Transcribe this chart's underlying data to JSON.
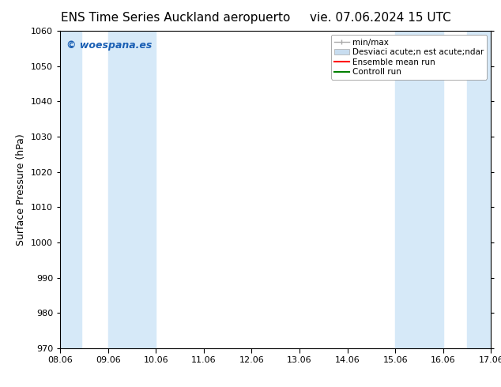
{
  "title_left": "ENS Time Series Auckland aeropuerto",
  "title_right": "vie. 07.06.2024 15 UTC",
  "ylabel": "Surface Pressure (hPa)",
  "ylim": [
    970,
    1060
  ],
  "yticks": [
    970,
    980,
    990,
    1000,
    1010,
    1020,
    1030,
    1040,
    1050,
    1060
  ],
  "xlabel_dates": [
    "08.06",
    "09.06",
    "10.06",
    "11.06",
    "12.06",
    "13.06",
    "14.06",
    "15.06",
    "16.06",
    "17.06"
  ],
  "x_positions": [
    0,
    1,
    2,
    3,
    4,
    5,
    6,
    7,
    8,
    9
  ],
  "xlim": [
    0,
    9
  ],
  "shaded_bands": [
    {
      "x_start": 0.0,
      "x_end": 0.45
    },
    {
      "x_start": 1.0,
      "x_end": 2.0
    },
    {
      "x_start": 7.0,
      "x_end": 8.0
    },
    {
      "x_start": 8.5,
      "x_end": 9.0
    }
  ],
  "band_color": "#d6e9f8",
  "watermark_text": "© woespana.es",
  "watermark_color": "#1a5fb4",
  "background_color": "#ffffff",
  "plot_bg_color": "#ffffff",
  "legend_label_minmax": "min/max",
  "legend_label_std": "Desviaci acute;n est acute;ndar",
  "legend_label_ensemble": "Ensemble mean run",
  "legend_label_control": "Controll run",
  "legend_handle_color_minmax": "#aaaaaa",
  "legend_handle_color_std": "#c8ddf0",
  "legend_handle_color_ensemble": "red",
  "legend_handle_color_control": "green",
  "tick_fontsize": 8,
  "label_fontsize": 9,
  "title_fontsize": 11,
  "watermark_fontsize": 9
}
